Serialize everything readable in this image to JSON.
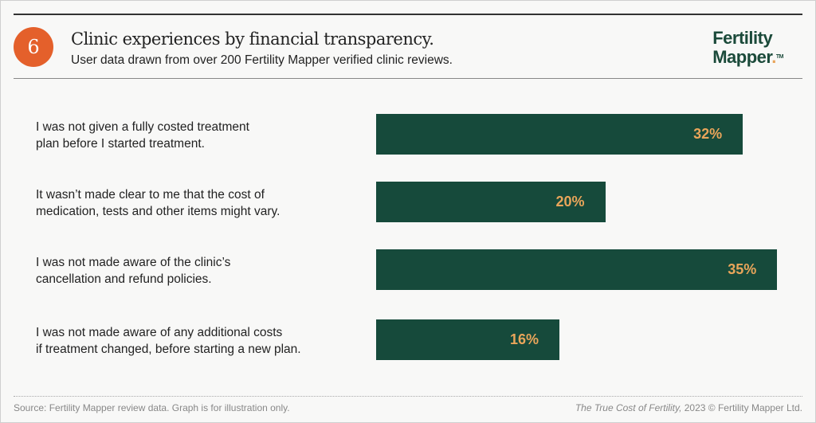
{
  "header": {
    "number": "6",
    "title": "Clinic experiences by financial transparency.",
    "subtitle": "User data drawn from over 200 Fertility Mapper verified clinic reviews.",
    "logo_line1": "Fertility",
    "logo_line2": "Mapper",
    "logo_tm": "TM"
  },
  "chart_data": {
    "type": "bar",
    "orientation": "horizontal",
    "title": "Clinic experiences by financial transparency.",
    "categories": [
      "I was not given a fully costed treatment plan before I started treatment.",
      "It wasn’t made clear to me that the cost of medication, tests and other items might vary.",
      "I was not made aware of the clinic’s cancellation and refund policies.",
      "I was not made aware of any additional costs if treatment changed, before starting a new plan."
    ],
    "category_lines": [
      [
        "I was not given a fully costed treatment",
        "plan before I started treatment."
      ],
      [
        "It wasn’t made clear to me that the cost of",
        "medication, tests and other items might vary."
      ],
      [
        "I was not made aware of the clinic’s",
        "cancellation and refund policies."
      ],
      [
        "I was not made aware of any additional costs",
        "if treatment changed, before starting a new plan."
      ]
    ],
    "values": [
      32,
      20,
      35,
      16
    ],
    "value_labels": [
      "32%",
      "20%",
      "35%",
      "16%"
    ],
    "xlim": [
      0,
      35.4
    ],
    "grid": false,
    "bar_color": "#164a3b",
    "label_color": "#e9a55a"
  },
  "footer": {
    "source": "Source: Fertility Mapper review data.  Graph is for illustration only.",
    "copyright_title": "The True Cost of Fertility,",
    "copyright_rest": " 2023 © Fertility Mapper Ltd."
  }
}
